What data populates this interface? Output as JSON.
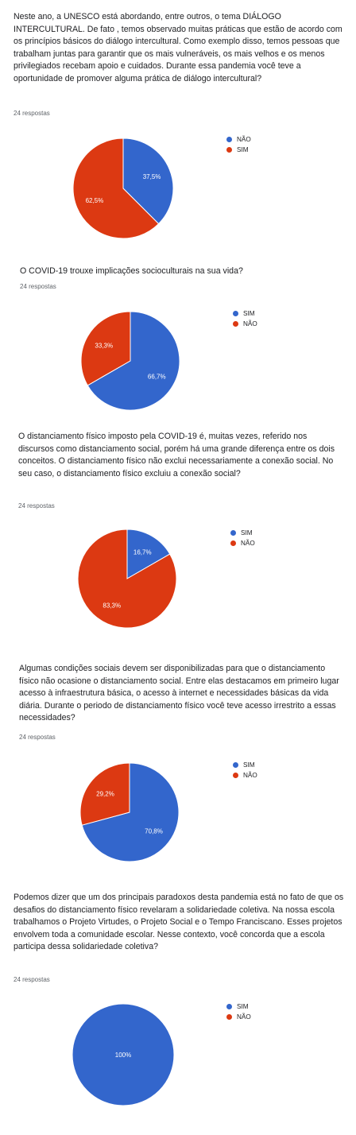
{
  "colors": {
    "blue": "#3366cc",
    "red": "#dc3912"
  },
  "questions": [
    {
      "text": "Neste ano, a UNESCO está abordando, entre outros, o tema DIÁLOGO INTERCULTURAL. De fato , temos observado muitas práticas que estão de acordo com os princípios básicos do diálogo intercultural. Como exemplo disso, temos pessoas que trabalham juntas para garantir que os mais vulneráveis, os mais velhos e os menos privilegiados recebam apoio e cuidados. Durante essa pandemia você teve a oportunidade de promover alguma prática de diálogo intercultural?",
      "responses": "24 respostas",
      "legend": [
        "NÃO",
        "SIM"
      ]
    },
    {
      "text": "O COVID-19 trouxe implicações socioculturais na sua vida?",
      "responses": "24 respostas",
      "legend": [
        "SIM",
        "NÃO"
      ]
    },
    {
      "text": "O distanciamento físico imposto pela COVID-19 é, muitas vezes, referido nos discursos como distanciamento social, porém há uma grande diferença entre os dois conceitos. O distanciamento físico não exclui necessariamente a conexão social. No seu caso, o distanciamento físico excluiu a conexão social?",
      "responses": "24 respostas",
      "legend": [
        "SIM",
        "NÃO"
      ]
    },
    {
      "text": "Algumas condições sociais devem ser disponibilizadas para que o distanciamento físico não ocasione o distanciamento social. Entre elas destacamos em primeiro lugar acesso à infraestrutura básica, o acesso à internet e necessidades básicas da vida diária. Durante o periodo de distanciamento físico você teve acesso irrestrito a essas necessidades?",
      "responses": "24 respostas",
      "legend": [
        "SIM",
        "NÃO"
      ]
    },
    {
      "text": "Podemos dizer que um dos principais paradoxos desta pandemia está no fato de que os desafios do distanciamento físico revelaram a solidariedade coletiva. Na nossa escola trabalhamos o Projeto Virtudes, o Projeto Social e o Tempo Franciscano. Esses projetos envolvem toda a comunidade escolar. Nesse contexto, você concorda que a escola participa dessa solidariedade coletiva?",
      "responses": "24 respostas",
      "legend": [
        "SIM",
        "NÃO"
      ]
    }
  ],
  "chart_data": [
    {
      "type": "pie",
      "categories": [
        "NÃO",
        "SIM"
      ],
      "values": [
        37.5,
        62.5
      ],
      "labels": [
        "37,5%",
        "62,5%"
      ],
      "colors": [
        "#3366cc",
        "#dc3912"
      ],
      "legend_position": "right"
    },
    {
      "type": "pie",
      "categories": [
        "SIM",
        "NÃO"
      ],
      "values": [
        66.7,
        33.3
      ],
      "labels": [
        "66,7%",
        "33,3%"
      ],
      "colors": [
        "#3366cc",
        "#dc3912"
      ],
      "legend_position": "right"
    },
    {
      "type": "pie",
      "categories": [
        "SIM",
        "NÃO"
      ],
      "values": [
        16.7,
        83.3
      ],
      "labels": [
        "16,7%",
        "83,3%"
      ],
      "colors": [
        "#3366cc",
        "#dc3912"
      ],
      "legend_position": "right"
    },
    {
      "type": "pie",
      "categories": [
        "SIM",
        "NÃO"
      ],
      "values": [
        70.8,
        29.2
      ],
      "labels": [
        "70,8%",
        "29,2%"
      ],
      "colors": [
        "#3366cc",
        "#dc3912"
      ],
      "legend_position": "right"
    },
    {
      "type": "pie",
      "categories": [
        "SIM",
        "NÃO"
      ],
      "values": [
        100,
        0
      ],
      "labels": [
        "100%",
        ""
      ],
      "colors": [
        "#3366cc",
        "#dc3912"
      ],
      "legend_position": "right"
    }
  ]
}
